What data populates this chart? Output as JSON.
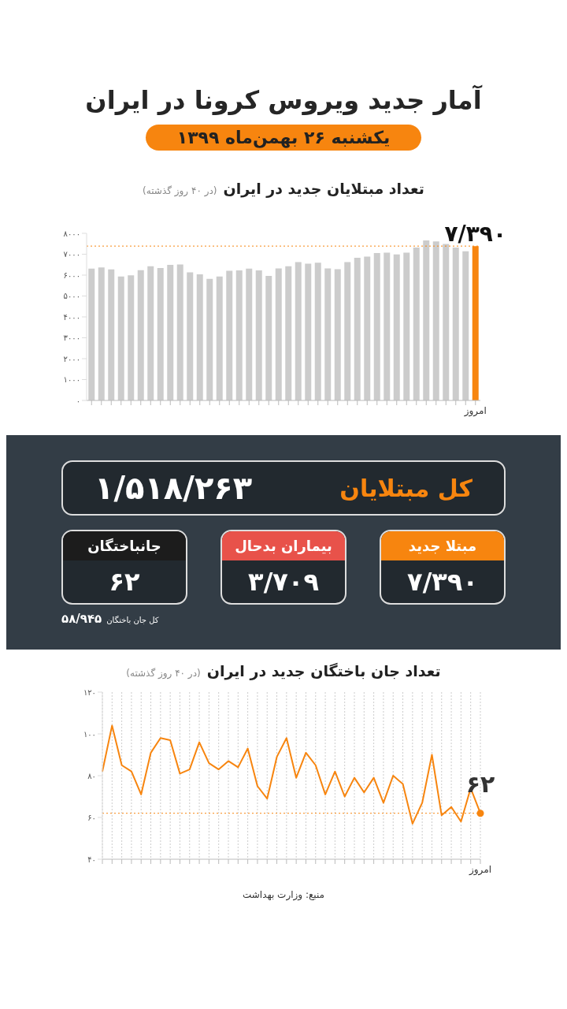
{
  "chart_data": [
    {
      "type": "other",
      "title": "آمار جدید ویروس کرونا در ایران",
      "subtitle": "یکشنبه ۲۶ بهمن‌ماه ۱۳۹۹"
    },
    {
      "type": "bar",
      "title": "تعداد مبتلایان جدید در ایران",
      "subtitle": "(در ۴۰ روز گذشته)",
      "categories": [
        null,
        null,
        null,
        null,
        null,
        null,
        null,
        null,
        null,
        null,
        null,
        null,
        null,
        null,
        null,
        null,
        null,
        null,
        null,
        null,
        null,
        null,
        null,
        null,
        null,
        null,
        null,
        null,
        null,
        null,
        null,
        null,
        null,
        null,
        null,
        null,
        null,
        null,
        null,
        "امروز"
      ],
      "values": [
        6310,
        6370,
        6270,
        5930,
        5990,
        6240,
        6420,
        6340,
        6490,
        6510,
        6130,
        6040,
        5820,
        5930,
        6210,
        6230,
        6310,
        6230,
        5960,
        6320,
        6420,
        6620,
        6550,
        6590,
        6320,
        6280,
        6620,
        6830,
        6890,
        7060,
        7080,
        6990,
        7080,
        7320,
        7660,
        7610,
        7490,
        7320,
        7140,
        7390
      ],
      "colors": [
        "#cccccc",
        "#cccccc",
        "#cccccc",
        "#cccccc",
        "#cccccc",
        "#cccccc",
        "#cccccc",
        "#cccccc",
        "#cccccc",
        "#cccccc",
        "#cccccc",
        "#cccccc",
        "#cccccc",
        "#cccccc",
        "#cccccc",
        "#cccccc",
        "#cccccc",
        "#cccccc",
        "#cccccc",
        "#cccccc",
        "#cccccc",
        "#cccccc",
        "#cccccc",
        "#cccccc",
        "#cccccc",
        "#cccccc",
        "#cccccc",
        "#cccccc",
        "#cccccc",
        "#cccccc",
        "#cccccc",
        "#cccccc",
        "#cccccc",
        "#cccccc",
        "#cccccc",
        "#cccccc",
        "#cccccc",
        "#cccccc",
        "#cccccc",
        "#f7850f"
      ],
      "value_labels": [
        null,
        null,
        null,
        null,
        null,
        null,
        null,
        null,
        null,
        null,
        null,
        null,
        null,
        null,
        null,
        null,
        null,
        null,
        null,
        null,
        null,
        null,
        null,
        null,
        null,
        null,
        null,
        null,
        null,
        null,
        null,
        null,
        null,
        null,
        null,
        null,
        null,
        null,
        null,
        "۷/۳۹۰"
      ],
      "ylim": [
        0,
        8000
      ],
      "yticks": [
        {
          "value": 0,
          "label": "۰"
        },
        {
          "value": 1000,
          "label": "۱۰۰۰"
        },
        {
          "value": 2000,
          "label": "۲۰۰۰"
        },
        {
          "value": 3000,
          "label": "۳۰۰۰"
        },
        {
          "value": 4000,
          "label": "۴۰۰۰"
        },
        {
          "value": 5000,
          "label": "۵۰۰۰"
        },
        {
          "value": 6000,
          "label": "۶۰۰۰"
        },
        {
          "value": 7000,
          "label": "۷۰۰۰"
        },
        {
          "value": 8000,
          "label": "۸۰۰۰"
        }
      ],
      "ref_lines": [
        {
          "axis": "y",
          "value": 7390,
          "color": "#f7850f",
          "line_style": "dotted"
        }
      ]
    },
    {
      "type": "other",
      "annotations": [
        "کل مبتلایان",
        "۱/۵۱۸/۲۶۳",
        "مبتلا جدید",
        "۷/۳۹۰",
        "بیماران بدحال",
        "۳/۷۰۹",
        "جانباختگان",
        "۶۲",
        "کل جان باختگان",
        "۵۸/۹۴۵"
      ]
    },
    {
      "type": "line",
      "title": "تعداد جان باختگان جدید در ایران",
      "subtitle": "(در ۴۰ روز گذشته)",
      "categories": [
        null,
        null,
        null,
        null,
        null,
        null,
        null,
        null,
        null,
        null,
        null,
        null,
        null,
        null,
        null,
        null,
        null,
        null,
        null,
        null,
        null,
        null,
        null,
        null,
        null,
        null,
        null,
        null,
        null,
        null,
        null,
        null,
        null,
        null,
        null,
        null,
        null,
        null,
        null,
        "امروز"
      ],
      "series": [
        {
          "type": "line",
          "color": "#f7850f",
          "marker": "none",
          "values": [
            82,
            104,
            85,
            82,
            71,
            91,
            98,
            97,
            81,
            83,
            96,
            86,
            83,
            87,
            84,
            93,
            75,
            69,
            89,
            98,
            79,
            91,
            85,
            71,
            82,
            70,
            79,
            72,
            79,
            67,
            80,
            76,
            57,
            67,
            90,
            61,
            65,
            58,
            74,
            62
          ]
        },
        {
          "type": "scatter",
          "color": "#f7850f",
          "marker": "circle",
          "x": [
            "امروز"
          ],
          "values": [
            62
          ],
          "value_labels": [
            "۶۲"
          ]
        }
      ],
      "ylim": [
        40,
        120
      ],
      "yticks": [
        {
          "value": 40,
          "label": "۴۰"
        },
        {
          "value": 60,
          "label": "۶۰"
        },
        {
          "value": 80,
          "label": "۸۰"
        },
        {
          "value": 100,
          "label": "۱۰۰"
        },
        {
          "value": 120,
          "label": "۱۲۰"
        }
      ],
      "grid": "x",
      "ref_lines": [
        {
          "axis": "y",
          "value": 62,
          "color": "#f7850f",
          "line_style": "dotted"
        }
      ],
      "annotations": [
        "منبع: وزارت بهداشت"
      ]
    }
  ]
}
